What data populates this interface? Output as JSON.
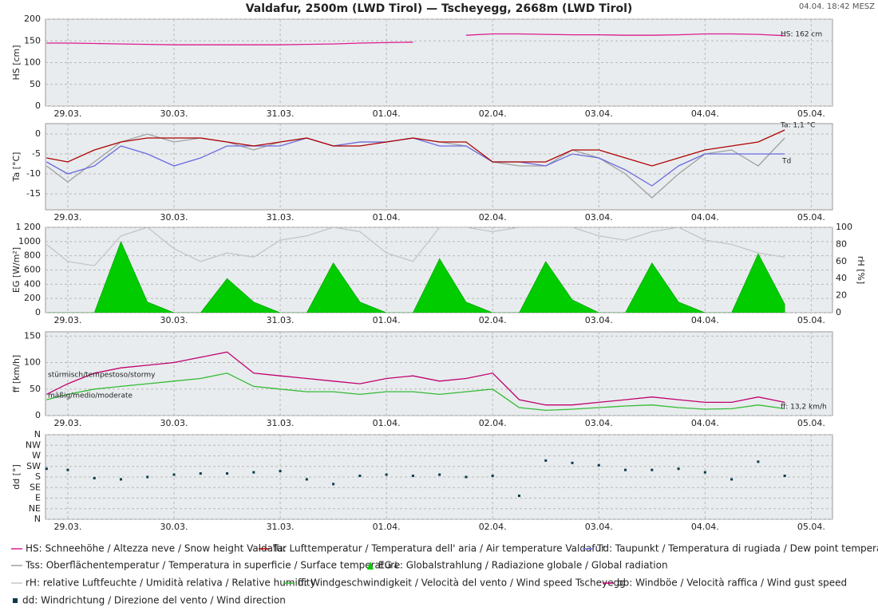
{
  "title": "Valdafur, 2500m (LWD Tirol) — Tscheyegg, 2668m (LWD Tirol)",
  "timestamp": "04.04. 18:42 MESZ",
  "chart_data": [
    {
      "type": "line",
      "ylabel": "HS [cm]",
      "label_color": "#d4147f",
      "grid": true,
      "xlim": [
        -0.21,
        7.2
      ],
      "ylim": [
        0,
        200
      ],
      "yticks": [
        0,
        50,
        100,
        150,
        200
      ],
      "xticks": [
        {
          "value": 0,
          "label": "29.03."
        },
        {
          "value": 1,
          "label": "30.03."
        },
        {
          "value": 2,
          "label": "31.03."
        },
        {
          "value": 3,
          "label": "01.04."
        },
        {
          "value": 4,
          "label": "02.04."
        },
        {
          "value": 5,
          "label": "03.04."
        },
        {
          "value": 6,
          "label": "04.04."
        },
        {
          "value": 7,
          "label": "05.04."
        }
      ],
      "x": [
        -0.2,
        0,
        0.25,
        0.5,
        0.75,
        1,
        1.25,
        1.5,
        1.75,
        2,
        2.25,
        2.5,
        2.75,
        3,
        3.25,
        3.5,
        3.75,
        4,
        4.25,
        4.5,
        4.75,
        5,
        5.25,
        5.5,
        5.75,
        6,
        6.25,
        6.5,
        6.75
      ],
      "series": [
        {
          "name": "HS: Schneehöhe / Altezza neve / Snow height  Valdafur",
          "color": "#dd1b8f",
          "values": [
            145,
            145,
            144,
            143,
            142,
            141,
            141,
            141,
            141,
            141,
            142,
            143,
            145,
            146,
            147,
            null,
            163,
            166,
            166,
            165,
            164,
            164,
            163,
            163,
            164,
            166,
            166,
            165,
            162
          ]
        }
      ],
      "annotations": [
        "HS: 162 cm"
      ]
    },
    {
      "type": "line",
      "ylabel": "Ta [°C]",
      "label_color": "#b00000",
      "grid": true,
      "xlim": [
        -0.21,
        7.2
      ],
      "ylim": [
        -19,
        2.6
      ],
      "yticks": [
        -15,
        -10,
        -5,
        0
      ],
      "xticks": [
        {
          "value": 0,
          "label": "29.03."
        },
        {
          "value": 1,
          "label": "30.03."
        },
        {
          "value": 2,
          "label": "31.03."
        },
        {
          "value": 3,
          "label": "01.04."
        },
        {
          "value": 4,
          "label": "02.04."
        },
        {
          "value": 5,
          "label": "03.04."
        },
        {
          "value": 6,
          "label": "04.04."
        },
        {
          "value": 7,
          "label": "05.04."
        }
      ],
      "x": [
        -0.2,
        0,
        0.25,
        0.5,
        0.75,
        1,
        1.25,
        1.5,
        1.75,
        2,
        2.25,
        2.5,
        2.75,
        3,
        3.25,
        3.5,
        3.75,
        4,
        4.25,
        4.5,
        4.75,
        5,
        5.25,
        5.5,
        5.75,
        6,
        6.25,
        6.5,
        6.75
      ],
      "series": [
        {
          "name": "Tss: Oberflächentemperatur / Temperatura in superficie / Surface temperature",
          "color": "#a0a0a0",
          "values": [
            -8,
            -12,
            -7,
            -2,
            0,
            -2,
            -1,
            -2,
            -4,
            -2,
            -1,
            -3,
            -2,
            -2,
            -1,
            -2,
            -3,
            -7,
            -8,
            -8,
            -4,
            -6,
            -10,
            -16,
            -10,
            -5,
            -4,
            -8,
            -1
          ]
        },
        {
          "name": "Td: Taupunkt / Temperatura di rugiada / Dew point temperature",
          "color": "#6a6ae0",
          "values": [
            -7,
            -10,
            -8,
            -3,
            -5,
            -8,
            -6,
            -3,
            -3,
            -3,
            -1,
            -3,
            -2,
            -2,
            -1,
            -3,
            -3,
            -7,
            -7,
            -8,
            -5,
            -6,
            -9,
            -13,
            -8,
            -5,
            -5,
            -5,
            -5
          ]
        },
        {
          "name": "Ta: Lufttemperatur / Temperatura dell' aria / Air temperature  Valdafur",
          "color": "#b00000",
          "values": [
            -6,
            -7,
            -4,
            -2,
            -1,
            -1,
            -1,
            -2,
            -3,
            -2,
            -1,
            -3,
            -3,
            -2,
            -1,
            -2,
            -2,
            -7,
            -7,
            -7,
            -4,
            -4,
            -6,
            -8,
            -6,
            -4,
            -3,
            -2,
            1
          ]
        }
      ],
      "annotations": [
        "Ta: 1,1 °C",
        "Td"
      ]
    },
    {
      "type": "line",
      "ylabel": "EG [W/m²]",
      "y2label": "rH [%]",
      "label_color": "#00aa00",
      "y2label_color": "#a0a0a8",
      "grid": true,
      "xlim": [
        -0.21,
        7.2
      ],
      "ylim": [
        0,
        1200
      ],
      "yticks": [
        0,
        200,
        400,
        600,
        800,
        1000,
        {
          "value": 1200,
          "label": "1 200"
        }
      ],
      "y2lim": [
        0,
        100
      ],
      "y2ticks": [
        0,
        20,
        40,
        60,
        80,
        100
      ],
      "xticks": [
        {
          "value": 0,
          "label": "29.03."
        },
        {
          "value": 1,
          "label": "30.03."
        },
        {
          "value": 2,
          "label": "31.03."
        },
        {
          "value": 3,
          "label": "01.04."
        },
        {
          "value": 4,
          "label": "02.04."
        },
        {
          "value": 5,
          "label": "03.04."
        },
        {
          "value": 6,
          "label": "04.04."
        },
        {
          "value": 7,
          "label": "05.04."
        }
      ],
      "x": [
        -0.2,
        0,
        0.25,
        0.5,
        0.75,
        1,
        1.25,
        1.5,
        1.75,
        2,
        2.25,
        2.5,
        2.75,
        3,
        3.25,
        3.5,
        3.75,
        4,
        4.25,
        4.5,
        4.75,
        5,
        5.25,
        5.5,
        5.75,
        6,
        6.25,
        6.5,
        6.75
      ],
      "series": [
        {
          "name": "EG↓: Globalstrahlung / Radiazione globale / Global radiation",
          "color": "#00cc00",
          "type": "area",
          "values": [
            0,
            0,
            0,
            1000,
            150,
            0,
            0,
            480,
            150,
            0,
            0,
            700,
            150,
            0,
            0,
            760,
            150,
            0,
            0,
            720,
            180,
            0,
            0,
            700,
            150,
            0,
            0,
            830,
            120
          ]
        },
        {
          "name": "rH: relative Luftfeuchte / Umidità relativa / Relative humidity",
          "color": "#c4c4cc",
          "axis": "y2",
          "values": [
            80,
            60,
            55,
            90,
            100,
            75,
            60,
            70,
            65,
            85,
            90,
            100,
            95,
            70,
            60,
            100,
            100,
            95,
            100,
            100,
            100,
            90,
            85,
            95,
            100,
            85,
            80,
            70,
            65
          ]
        }
      ]
    },
    {
      "type": "line",
      "ylabel": "ff [km/h]",
      "label_color": "#22aa22",
      "grid": true,
      "xlim": [
        -0.21,
        7.2
      ],
      "ylim": [
        0,
        158
      ],
      "yticks": [
        0,
        50,
        100,
        150
      ],
      "xticks": [
        {
          "value": 0,
          "label": "29.03."
        },
        {
          "value": 1,
          "label": "30.03."
        },
        {
          "value": 2,
          "label": "31.03."
        },
        {
          "value": 3,
          "label": "01.04."
        },
        {
          "value": 4,
          "label": "02.04."
        },
        {
          "value": 5,
          "label": "03.04."
        },
        {
          "value": 6,
          "label": "04.04."
        },
        {
          "value": 7,
          "label": "05.04."
        }
      ],
      "x": [
        -0.2,
        0,
        0.25,
        0.5,
        0.75,
        1,
        1.25,
        1.5,
        1.75,
        2,
        2.25,
        2.5,
        2.75,
        3,
        3.25,
        3.5,
        3.75,
        4,
        4.25,
        4.5,
        4.75,
        5,
        5.25,
        5.5,
        5.75,
        6,
        6.25,
        6.5,
        6.75
      ],
      "series": [
        {
          "name": "bb: Windböe / Velocità raffica / Wind gust speed",
          "color": "#c0006e",
          "values": [
            40,
            60,
            80,
            90,
            95,
            100,
            110,
            120,
            80,
            75,
            70,
            65,
            60,
            70,
            75,
            65,
            70,
            80,
            30,
            20,
            20,
            25,
            30,
            35,
            30,
            25,
            25,
            35,
            25
          ]
        },
        {
          "name": "ff: Windgeschwindigkeit / Velocità del vento / Wind speed  Tscheyegg",
          "color": "#33bb33",
          "values": [
            30,
            40,
            50,
            55,
            60,
            65,
            70,
            80,
            55,
            50,
            45,
            45,
            40,
            45,
            45,
            40,
            45,
            50,
            15,
            10,
            12,
            15,
            18,
            20,
            15,
            12,
            13,
            20,
            13
          ]
        }
      ],
      "annotations": [
        "ff: 13,2 km/h",
        "stürmisch/tempestoso/stormy",
        "mäßig/medio/moderate"
      ]
    },
    {
      "type": "scatter",
      "ylabel": "dd [°]",
      "label_color": "#0a3a6a",
      "grid": true,
      "xlim": [
        -0.21,
        7.2
      ],
      "ylim": [
        0,
        360
      ],
      "yticks": [
        {
          "value": 0,
          "label": "N"
        },
        {
          "value": 45,
          "label": "NE"
        },
        {
          "value": 90,
          "label": "E"
        },
        {
          "value": 135,
          "label": "SE"
        },
        {
          "value": 180,
          "label": "S"
        },
        {
          "value": 225,
          "label": "SW"
        },
        {
          "value": 270,
          "label": "W"
        },
        {
          "value": 315,
          "label": "NW"
        },
        {
          "value": 360,
          "label": "N"
        }
      ],
      "xticks": [
        {
          "value": 0,
          "label": "29.03."
        },
        {
          "value": 1,
          "label": "30.03."
        },
        {
          "value": 2,
          "label": "31.03."
        },
        {
          "value": 3,
          "label": "01.04."
        },
        {
          "value": 4,
          "label": "02.04."
        },
        {
          "value": 5,
          "label": "03.04."
        },
        {
          "value": 6,
          "label": "04.04."
        },
        {
          "value": 7,
          "label": "05.04."
        }
      ],
      "x": [
        -0.2,
        0,
        0.25,
        0.5,
        0.75,
        1,
        1.25,
        1.5,
        1.75,
        2,
        2.25,
        2.5,
        2.75,
        3,
        3.25,
        3.5,
        3.75,
        4,
        4.25,
        4.5,
        4.75,
        5,
        5.25,
        5.5,
        5.75,
        6,
        6.25,
        6.5,
        6.75
      ],
      "series": [
        {
          "name": "dd: Windrichtung / Direzione del vento / Wind direction",
          "color": "#0a3a4a",
          "values": [
            215,
            210,
            175,
            170,
            180,
            190,
            195,
            195,
            200,
            205,
            170,
            150,
            185,
            190,
            185,
            190,
            180,
            185,
            100,
            250,
            240,
            230,
            210,
            210,
            215,
            200,
            170,
            245,
            185
          ]
        }
      ]
    }
  ]
}
